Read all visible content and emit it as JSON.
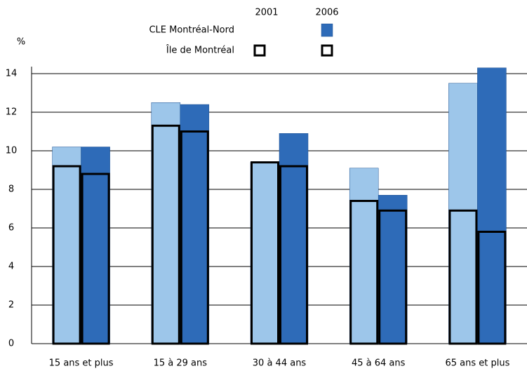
{
  "chart_data": {
    "type": "overlay_bar",
    "y_label": "%",
    "categories": [
      "15 ans et plus",
      "15 à 29 ans",
      "30 à 44 ans",
      "45 à 64 ans",
      "65 ans et plus"
    ],
    "series": [
      {
        "name": "CLE Montréal-Nord",
        "year": "2001",
        "color": "#9dc6ea",
        "style": "filled",
        "values": [
          10.2,
          12.5,
          9.4,
          9.1,
          13.5
        ]
      },
      {
        "name": "CLE Montréal-Nord",
        "year": "2006",
        "color": "#2e6bb8",
        "style": "filled",
        "values": [
          10.2,
          12.4,
          10.9,
          7.7,
          14.3
        ]
      },
      {
        "name": "Île de Montréal",
        "year": "2001",
        "color": "#000000",
        "style": "outline",
        "values": [
          9.2,
          11.3,
          9.4,
          7.4,
          6.9
        ]
      },
      {
        "name": "Île de Montréal",
        "year": "2006",
        "color": "#000000",
        "style": "outline",
        "values": [
          8.8,
          11.0,
          9.2,
          6.9,
          5.8
        ]
      }
    ],
    "ylim": [
      0,
      14
    ],
    "yticks": [
      0,
      2,
      4,
      6,
      8,
      10,
      12,
      14
    ],
    "grid": true
  }
}
